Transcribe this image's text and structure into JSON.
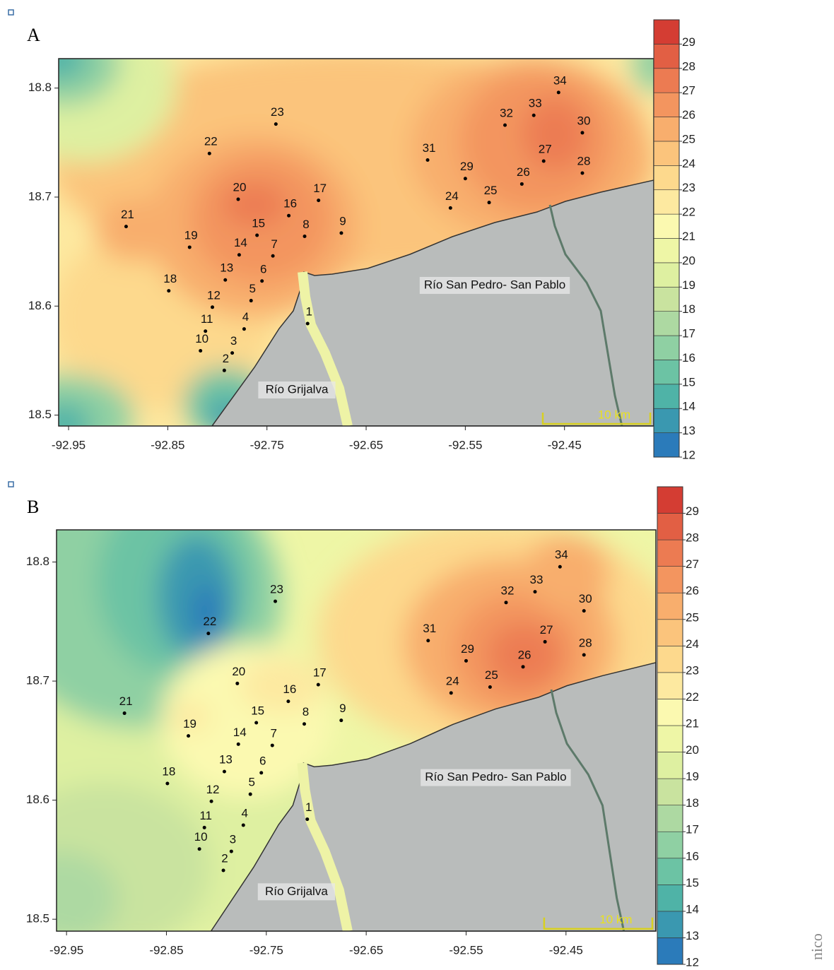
{
  "panels": [
    {
      "label": "A",
      "scale_label": "10 km"
    },
    {
      "label": "B",
      "scale_label": "10 km"
    }
  ],
  "xlim": [
    -92.96,
    -92.36
  ],
  "ylim": [
    18.49,
    18.827
  ],
  "xticks": [
    -92.95,
    -92.85,
    -92.75,
    -92.65,
    -92.55,
    -92.45
  ],
  "yticks": [
    18.5,
    18.6,
    18.7,
    18.8
  ],
  "river_labels": [
    "Río San Pedro- San Pablo",
    "Río Grijalva"
  ],
  "colorbar": {
    "clim": [
      12,
      30
    ],
    "ticks": [
      12,
      13,
      14,
      15,
      16,
      17,
      18,
      19,
      20,
      21,
      22,
      23,
      24,
      25,
      26,
      27,
      28,
      29
    ],
    "colors": [
      "#2b7bba",
      "#3a98b0",
      "#4fb3a7",
      "#6cc3a4",
      "#8fd0a3",
      "#add9a2",
      "#c9e39f",
      "#def0a1",
      "#eef6a6",
      "#fbf9b0",
      "#fde9a0",
      "#fdd98d",
      "#fbc47c",
      "#f8ae6d",
      "#f3955f",
      "#ec7b52",
      "#e25f44",
      "#d43d33"
    ]
  },
  "stations": [
    {
      "label": "1",
      "lon": -92.709,
      "lat": 18.584
    },
    {
      "label": "2",
      "lon": -92.793,
      "lat": 18.541
    },
    {
      "label": "3",
      "lon": -92.785,
      "lat": 18.557
    },
    {
      "label": "4",
      "lon": -92.773,
      "lat": 18.579
    },
    {
      "label": "5",
      "lon": -92.766,
      "lat": 18.605
    },
    {
      "label": "6",
      "lon": -92.755,
      "lat": 18.623
    },
    {
      "label": "7",
      "lon": -92.744,
      "lat": 18.646
    },
    {
      "label": "8",
      "lon": -92.712,
      "lat": 18.664
    },
    {
      "label": "9",
      "lon": -92.675,
      "lat": 18.667
    },
    {
      "label": "10",
      "lon": -92.817,
      "lat": 18.559
    },
    {
      "label": "11",
      "lon": -92.812,
      "lat": 18.577
    },
    {
      "label": "12",
      "lon": -92.805,
      "lat": 18.599
    },
    {
      "label": "13",
      "lon": -92.792,
      "lat": 18.624
    },
    {
      "label": "14",
      "lon": -92.778,
      "lat": 18.647
    },
    {
      "label": "15",
      "lon": -92.76,
      "lat": 18.665
    },
    {
      "label": "16",
      "lon": -92.728,
      "lat": 18.683
    },
    {
      "label": "17",
      "lon": -92.698,
      "lat": 18.697
    },
    {
      "label": "18",
      "lon": -92.849,
      "lat": 18.614
    },
    {
      "label": "19",
      "lon": -92.828,
      "lat": 18.654
    },
    {
      "label": "20",
      "lon": -92.779,
      "lat": 18.698
    },
    {
      "label": "21",
      "lon": -92.892,
      "lat": 18.673
    },
    {
      "label": "22",
      "lon": -92.808,
      "lat": 18.74
    },
    {
      "label": "23",
      "lon": -92.741,
      "lat": 18.767
    },
    {
      "label": "24",
      "lon": -92.565,
      "lat": 18.69
    },
    {
      "label": "25",
      "lon": -92.526,
      "lat": 18.695
    },
    {
      "label": "26",
      "lon": -92.493,
      "lat": 18.712
    },
    {
      "label": "27",
      "lon": -92.471,
      "lat": 18.733
    },
    {
      "label": "28",
      "lon": -92.432,
      "lat": 18.722
    },
    {
      "label": "29",
      "lon": -92.55,
      "lat": 18.717
    },
    {
      "label": "30",
      "lon": -92.432,
      "lat": 18.759
    },
    {
      "label": "31",
      "lon": -92.588,
      "lat": 18.734
    },
    {
      "label": "32",
      "lon": -92.51,
      "lat": 18.766
    },
    {
      "label": "33",
      "lon": -92.481,
      "lat": 18.775
    },
    {
      "label": "34",
      "lon": -92.456,
      "lat": 18.796
    }
  ],
  "side_text": "nico"
}
